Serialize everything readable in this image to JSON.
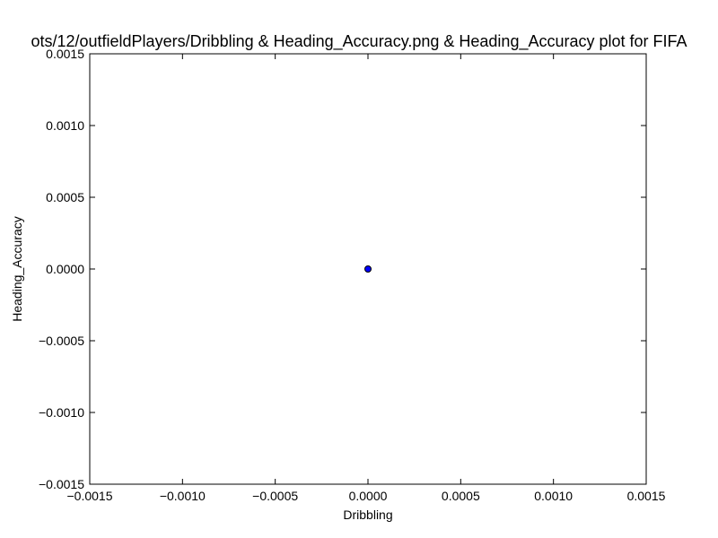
{
  "chart_data": {
    "type": "scatter",
    "title": "ots/12/outfieldPlayers/Dribbling & Heading_Accuracy.png & Heading_Accuracy plot for FIFA",
    "xlabel": "Dribbling",
    "ylabel": "Heading_Accuracy",
    "xlim": [
      -0.0015,
      0.0015
    ],
    "ylim": [
      -0.0015,
      0.0015
    ],
    "x_ticks": [
      -0.0015,
      -0.001,
      -0.0005,
      0,
      0.0005,
      0.001,
      0.0015
    ],
    "x_tick_labels": [
      "−0.0015",
      "−0.0010",
      "−0.0005",
      "0.0000",
      "0.0005",
      "0.0010",
      "0.0015"
    ],
    "y_ticks": [
      -0.0015,
      -0.001,
      -0.0005,
      0,
      0.0005,
      0.001,
      0.0015
    ],
    "y_tick_labels": [
      "−0.0015",
      "−0.0010",
      "−0.0005",
      "0.0000",
      "0.0005",
      "0.0010",
      "0.0015"
    ],
    "grid": false,
    "points": [
      {
        "x": 0,
        "y": 0
      }
    ],
    "marker_color": "#0000ff",
    "marker_edge_color": "#000000"
  }
}
